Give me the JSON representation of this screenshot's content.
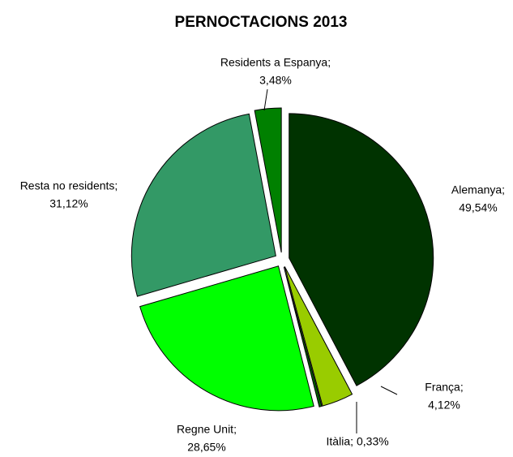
{
  "chart_data": {
    "type": "pie",
    "title": "PERNOCTACIONS 2013",
    "categories": [
      "Alemanya;",
      "França;",
      "Itàlia;",
      "Regne Unit;",
      "Resta no residents;",
      "Residents a Espanya;"
    ],
    "values": [
      49.54,
      4.12,
      0.33,
      28.65,
      31.12,
      3.48
    ],
    "value_labels": [
      "49,54%",
      "4,12%",
      "0,33%",
      "28,65%",
      "31,12%",
      "3,48%"
    ],
    "colors": [
      "#003300",
      "#99cc00",
      "#006600",
      "#00ff00",
      "#339966",
      "#008000"
    ]
  }
}
